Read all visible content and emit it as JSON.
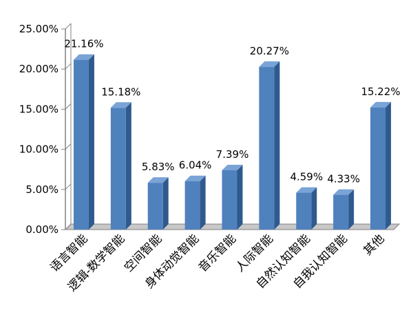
{
  "chart_data": {
    "type": "bar",
    "style": "3d-column",
    "categories": [
      "语言智能",
      "逻辑-数学智能",
      "空间智能",
      "身体动觉智能",
      "音乐智能",
      "人际智能",
      "自然认知智能",
      "自我认知智能",
      "其他"
    ],
    "values": [
      21.16,
      15.18,
      5.83,
      6.04,
      7.39,
      20.27,
      4.59,
      4.33,
      15.22
    ],
    "data_labels": [
      "21.16%",
      "15.18%",
      "5.83%",
      "6.04%",
      "7.39%",
      "20.27%",
      "4.59%",
      "4.33%",
      "15.22%"
    ],
    "y_ticks": [
      "0.00%",
      "5.00%",
      "10.00%",
      "15.00%",
      "20.00%",
      "25.00%"
    ],
    "ylim": [
      0,
      25
    ],
    "title": "",
    "xlabel": "",
    "ylabel": "",
    "grid": false,
    "legend": "none",
    "colors": {
      "bar_front": "#4F81BD",
      "bar_side": "#2E5A8E",
      "bar_top": "#7AA3D6",
      "axis": "#808080",
      "floor": "#C8C8C8"
    }
  }
}
